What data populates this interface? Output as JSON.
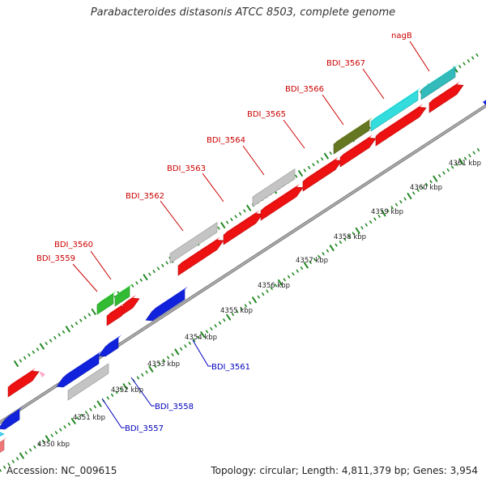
{
  "title": "Parabacteroides distasonis ATCC 8503, complete genome",
  "accession": "Accession: NC_009615",
  "summary": "Topology: circular; Length: 4,811,379 bp; Genes: 3,954",
  "colors": {
    "forward_label": "#cc0000",
    "reverse_label": "#0000bb",
    "forward_gene": "#ee1111",
    "reverse_gene": "#1122dd",
    "backbone": "#888888",
    "tick": "#228822",
    "gray_gene": "#c4c4c4",
    "green_gene": "#33bb33",
    "olive_gene": "#667722",
    "cyan_gene": "#33dddd",
    "teal_gene": "#33bbbb",
    "pink_gene": "#ee7777"
  },
  "kbp_labels": [
    "4350 kbp",
    "4351 kbp",
    "4352 kbp",
    "4353 kbp",
    "4354 kbp",
    "4355 kbp",
    "4356 kbp",
    "4357 kbp",
    "4358 kbp",
    "4359 kbp",
    "4360 kbp",
    "4361 kbp"
  ],
  "genes_top": [
    {
      "label": "BDI_3559",
      "color": "#cc0000"
    },
    {
      "label": "BDI_3560",
      "color": "#cc0000"
    },
    {
      "label": "BDI_3562",
      "color": "#cc0000"
    },
    {
      "label": "BDI_3563",
      "color": "#cc0000"
    },
    {
      "label": "BDI_3564",
      "color": "#cc0000"
    },
    {
      "label": "BDI_3565",
      "color": "#cc0000"
    },
    {
      "label": "BDI_3566",
      "color": "#cc0000"
    },
    {
      "label": "BDI_3567",
      "color": "#cc0000"
    },
    {
      "label": "nagB",
      "color": "#cc0000"
    }
  ],
  "genes_bottom": [
    {
      "label": "BDI_3561",
      "color": "#0000bb"
    },
    {
      "label": "BDI_3558",
      "color": "#0000bb"
    },
    {
      "label": "BDI_3557",
      "color": "#0000bb"
    }
  ]
}
